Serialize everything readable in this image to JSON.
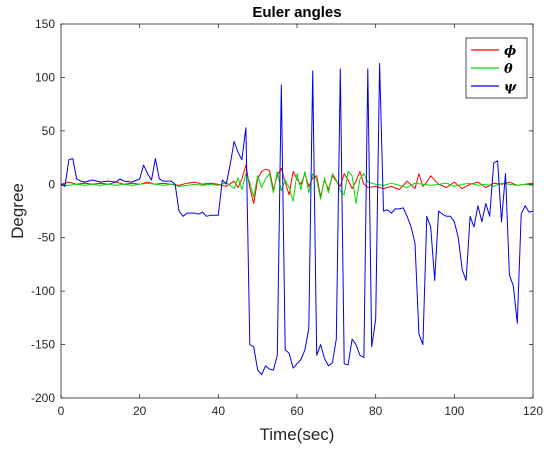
{
  "chart_data": {
    "type": "line",
    "title": "Euler angles",
    "xlabel": "Time(sec)",
    "ylabel": "Degree",
    "xlim": [
      0,
      120
    ],
    "ylim": [
      -200,
      150
    ],
    "xticks": [
      0,
      20,
      40,
      60,
      80,
      100,
      120
    ],
    "yticks": [
      -200,
      -150,
      -100,
      -50,
      0,
      50,
      100,
      150
    ],
    "grid": false,
    "legend_position": "top-right",
    "series": [
      {
        "name": "ϕ",
        "color": "#ff0000",
        "x": [
          0,
          1,
          2,
          4,
          6,
          8,
          10,
          12,
          14,
          16,
          18,
          20,
          22,
          24,
          26,
          28,
          30,
          32,
          34,
          36,
          38,
          40,
          42,
          44,
          45,
          46,
          47,
          48,
          49,
          50,
          51,
          52,
          53,
          54,
          55,
          56,
          57,
          58,
          59,
          60,
          61,
          62,
          63,
          64,
          65,
          66,
          67,
          68,
          69,
          70,
          71,
          72,
          73,
          74,
          75,
          76,
          77,
          78,
          80,
          82,
          84,
          86,
          88,
          90,
          91,
          92,
          93,
          94,
          96,
          98,
          100,
          102,
          104,
          106,
          108,
          110,
          112,
          114,
          116,
          118,
          120
        ],
        "values": [
          0,
          1,
          2,
          0,
          1,
          0,
          1,
          0,
          2,
          0,
          1,
          0,
          2,
          0,
          1,
          0,
          -1,
          1,
          2,
          0,
          1,
          0,
          -2,
          3,
          -3,
          5,
          18,
          -3,
          -18,
          5,
          12,
          14,
          13,
          -5,
          8,
          15,
          2,
          -10,
          12,
          5,
          0,
          10,
          -2,
          6,
          8,
          -12,
          4,
          -5,
          8,
          3,
          -2,
          10,
          4,
          -4,
          3,
          12,
          0,
          -3,
          -2,
          -4,
          -2,
          -5,
          3,
          -4,
          10,
          -2,
          2,
          8,
          0,
          -3,
          2,
          -4,
          0,
          2,
          -3,
          1,
          0,
          2,
          -1,
          0,
          1
        ]
      },
      {
        "name": "θ",
        "color": "#00dd00",
        "x": [
          0,
          2,
          4,
          6,
          8,
          10,
          12,
          14,
          16,
          18,
          20,
          22,
          24,
          26,
          28,
          30,
          32,
          34,
          36,
          38,
          40,
          42,
          44,
          45,
          46,
          47,
          48,
          49,
          50,
          51,
          52,
          53,
          54,
          55,
          56,
          57,
          58,
          59,
          60,
          61,
          62,
          63,
          64,
          65,
          66,
          67,
          68,
          69,
          70,
          71,
          72,
          73,
          74,
          75,
          76,
          77,
          78,
          80,
          82,
          84,
          86,
          88,
          90,
          92,
          94,
          96,
          98,
          100,
          102,
          104,
          106,
          108,
          110,
          112,
          114,
          116,
          118,
          120
        ],
        "values": [
          -1,
          -1,
          0,
          -1,
          0,
          -1,
          0,
          -1,
          0,
          -1,
          0,
          1,
          0,
          -1,
          0,
          -2,
          -1,
          0,
          -1,
          0,
          -1,
          2,
          -4,
          6,
          -5,
          10,
          2,
          -12,
          8,
          -3,
          5,
          10,
          -8,
          12,
          -6,
          4,
          -3,
          -16,
          10,
          -5,
          12,
          -8,
          10,
          4,
          -14,
          6,
          -8,
          10,
          4,
          -6,
          -10,
          12,
          8,
          -18,
          5,
          10,
          2,
          0,
          -1,
          1,
          -1,
          -3,
          1,
          0,
          -1,
          0,
          1,
          -2,
          0,
          1,
          -1,
          0,
          -2,
          1,
          0,
          -1,
          0,
          -1
        ]
      },
      {
        "name": "ψ",
        "color": "#0000ee",
        "x": [
          0,
          1,
          2,
          3,
          4,
          5,
          6,
          8,
          10,
          12,
          14,
          15,
          16,
          18,
          20,
          21,
          22,
          23,
          24,
          25,
          26,
          28,
          29,
          30,
          31,
          32,
          34,
          35,
          36,
          37,
          38,
          40,
          41,
          42,
          43,
          44,
          45,
          46,
          47,
          48,
          49,
          50,
          51,
          52,
          53,
          54,
          55,
          56,
          57,
          58,
          59,
          60,
          61,
          62,
          63,
          64,
          65,
          66,
          67,
          68,
          69,
          70,
          71,
          72,
          73,
          74,
          75,
          76,
          77,
          78,
          79,
          80,
          81,
          82,
          83,
          84,
          85,
          86,
          87,
          88,
          89,
          90,
          91,
          92,
          93,
          94,
          95,
          96,
          97,
          98,
          99,
          100,
          101,
          102,
          103,
          104,
          105,
          106,
          107,
          108,
          109,
          110,
          111,
          112,
          113,
          114,
          115,
          116,
          117,
          118,
          119,
          120
        ],
        "values": [
          0,
          -2,
          23,
          24,
          5,
          3,
          2,
          4,
          2,
          3,
          2,
          5,
          3,
          2,
          5,
          18,
          10,
          4,
          24,
          5,
          3,
          3,
          0,
          -25,
          -30,
          -27,
          -27,
          -28,
          -26,
          -30,
          -29,
          -29,
          4,
          0,
          18,
          40,
          30,
          23,
          53,
          -150,
          -152,
          -174,
          -178,
          -170,
          -173,
          -174,
          -160,
          93,
          -155,
          -158,
          -172,
          -168,
          -164,
          -155,
          -135,
          106,
          -160,
          -150,
          -163,
          -170,
          -167,
          -145,
          108,
          -168,
          -169,
          -145,
          -150,
          -160,
          -162,
          108,
          -152,
          -126,
          113,
          -25,
          -24,
          -27,
          -23,
          -23,
          -22,
          -30,
          -40,
          -55,
          -140,
          -150,
          -30,
          -40,
          -90,
          -25,
          -28,
          -30,
          -30,
          -35,
          -50,
          -80,
          -90,
          -30,
          -40,
          -20,
          -35,
          -18,
          -30,
          20,
          22,
          -35,
          10,
          -85,
          -95,
          -130,
          -28,
          -20,
          -26,
          -25
        ]
      }
    ]
  }
}
